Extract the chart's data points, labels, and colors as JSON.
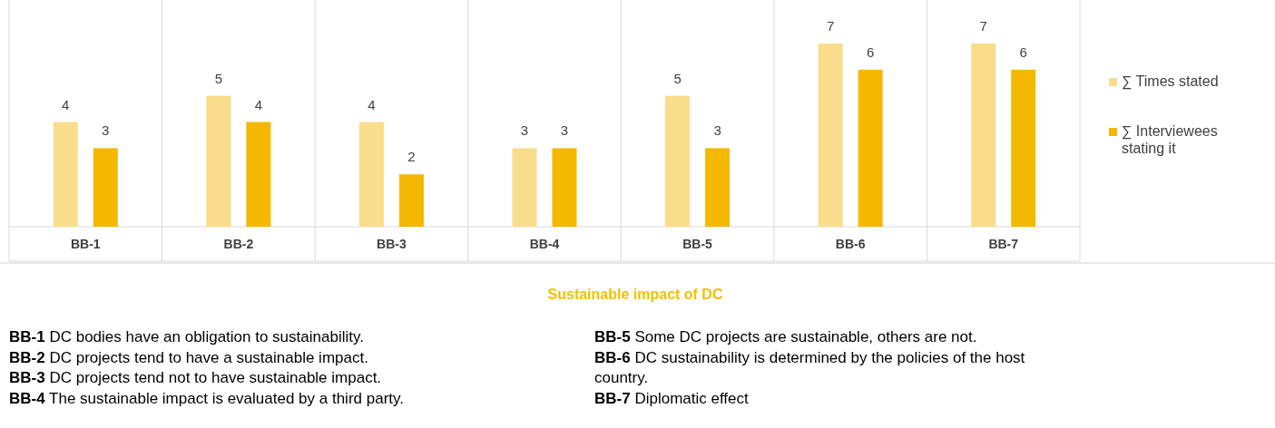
{
  "chart_data": {
    "type": "bar",
    "title": "Sustainable impact of DC",
    "categories": [
      "BB-1",
      "BB-2",
      "BB-3",
      "BB-4",
      "BB-5",
      "BB-6",
      "BB-7"
    ],
    "series": [
      {
        "name": "∑ Times stated",
        "color": "#fadd8c",
        "values": [
          4,
          5,
          4,
          3,
          5,
          7,
          7
        ]
      },
      {
        "name": "∑ Interviewees stating it",
        "color": "#f5b800",
        "values": [
          3,
          4,
          2,
          3,
          3,
          6,
          6
        ]
      }
    ],
    "data_labels": true,
    "grid": "x",
    "legend": "right",
    "annotations": [
      "BB-1 DC bodies have an obligation to sustainability.",
      "BB-2 DC projects tend to have a sustainable impact.",
      "BB-3 DC projects tend not to have sustainable impact.",
      "BB-4 The sustainable impact is evaluated by a third party.",
      "BB-5 Some DC projects are sustainable, others are not.",
      "BB-6 DC sustainability is determined by the policies of the host country.",
      "BB-7 Diplomatic effect"
    ]
  }
}
